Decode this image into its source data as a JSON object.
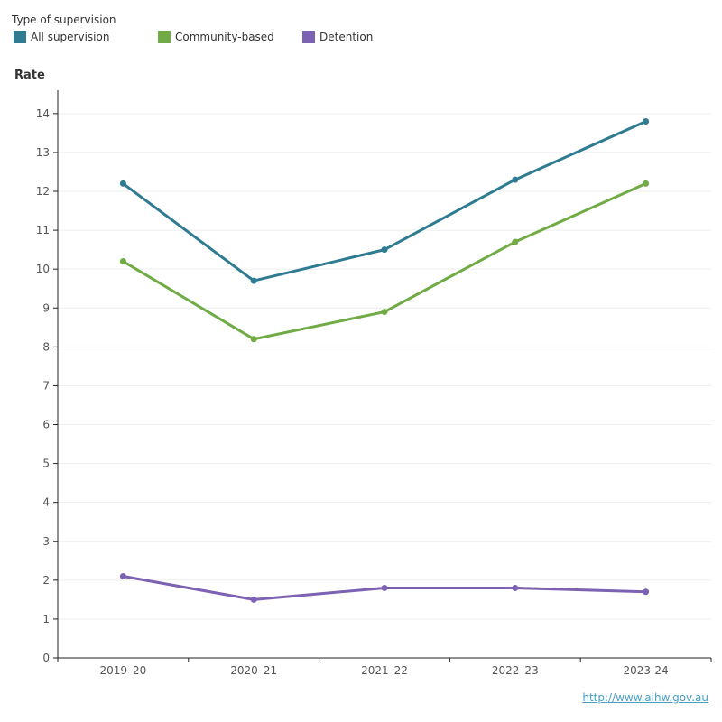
{
  "legend": {
    "title": "Type of supervision"
  },
  "colors": {
    "all_supervision": "#2e7b92",
    "community_based": "#71ab45",
    "detention": "#7c62b3",
    "axis": "#222222",
    "grid": "#eeeeee"
  },
  "chart_data": {
    "type": "line",
    "title": "",
    "xlabel": "",
    "ylabel": "Rate",
    "legend_title": "Type of supervision",
    "legend_position": "top-left",
    "categories": [
      "2019–20",
      "2020–21",
      "2021–22",
      "2022–23",
      "2023-24"
    ],
    "ylim": [
      0,
      14.6
    ],
    "yticks": [
      0,
      1,
      2,
      3,
      4,
      5,
      6,
      7,
      8,
      9,
      10,
      11,
      12,
      13,
      14
    ],
    "grid": true,
    "series": [
      {
        "name": "All supervision",
        "color": "#2e7b92",
        "values": [
          12.2,
          9.7,
          10.5,
          12.3,
          13.8
        ]
      },
      {
        "name": "Community-based",
        "color": "#71ab45",
        "values": [
          10.2,
          8.2,
          8.9,
          10.7,
          12.2
        ]
      },
      {
        "name": "Detention",
        "color": "#7c62b3",
        "values": [
          2.1,
          1.5,
          1.8,
          1.8,
          1.7
        ]
      }
    ]
  },
  "footer": {
    "source_link": "http://www.aihw.gov.au"
  }
}
